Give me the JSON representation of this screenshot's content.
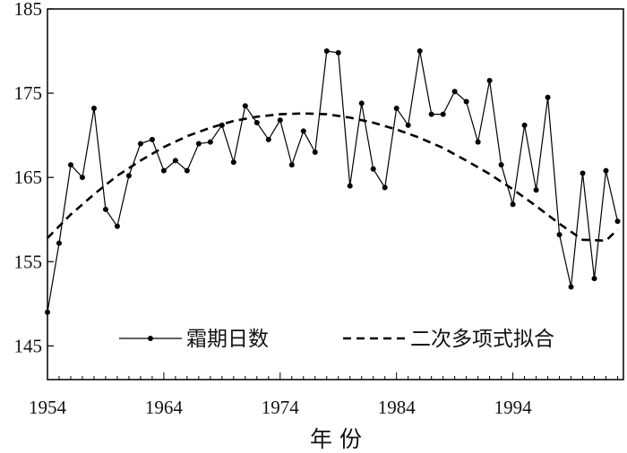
{
  "chart_data": {
    "type": "line",
    "xlabel": "年 份",
    "ylabel": "",
    "xlim": [
      1954,
      2003.5
    ],
    "ylim": [
      141,
      185
    ],
    "x_ticks": [
      1954,
      1964,
      1974,
      1984,
      1994
    ],
    "y_ticks": [
      145,
      155,
      165,
      175,
      185
    ],
    "grid": false,
    "legend_position": "bottom",
    "series": [
      {
        "name": "霜期日数",
        "style": "solid-with-markers",
        "color": "#000000",
        "x": [
          1954,
          1955,
          1956,
          1957,
          1958,
          1959,
          1960,
          1961,
          1962,
          1963,
          1964,
          1965,
          1966,
          1967,
          1968,
          1969,
          1970,
          1971,
          1972,
          1973,
          1974,
          1975,
          1976,
          1977,
          1978,
          1979,
          1980,
          1981,
          1982,
          1983,
          1984,
          1985,
          1986,
          1987,
          1988,
          1989,
          1990,
          1991,
          1992,
          1993,
          1994,
          1995,
          1996,
          1997,
          1998,
          1999,
          2000,
          2001,
          2002,
          2003
        ],
        "values": [
          149,
          157.2,
          166.5,
          165,
          173.2,
          161.2,
          159.2,
          165.2,
          169,
          169.5,
          165.8,
          167,
          165.8,
          169,
          169.2,
          171.2,
          166.8,
          173.5,
          171.5,
          169.5,
          171.8,
          166.5,
          170.5,
          168,
          180,
          179.8,
          164,
          173.8,
          166,
          163.8,
          173.2,
          171.2,
          180,
          172.5,
          172.5,
          175.2,
          174,
          169.2,
          176.5,
          166.5,
          161.8,
          171.2,
          163.5,
          174.5,
          158.2,
          152,
          165.5,
          153,
          165.8,
          159.8
        ]
      },
      {
        "name": "二次多项式拟合",
        "style": "dashed",
        "color": "#000000",
        "x": [
          1954,
          1956,
          1958,
          1960,
          1962,
          1964,
          1966,
          1968,
          1970,
          1972,
          1974,
          1976,
          1978,
          1980,
          1982,
          1984,
          1986,
          1988,
          1990,
          1992,
          1994,
          1996,
          1998,
          2000,
          2002,
          2003
        ],
        "values": [
          157.8,
          160.6,
          163,
          165.2,
          167,
          168.6,
          169.9,
          170.9,
          171.7,
          172.2,
          172.5,
          172.6,
          172.5,
          172.1,
          171.5,
          170.7,
          169.7,
          168.5,
          167.0,
          165.4,
          163.6,
          161.6,
          159.5,
          157.6,
          157.5,
          158.8
        ]
      }
    ]
  }
}
